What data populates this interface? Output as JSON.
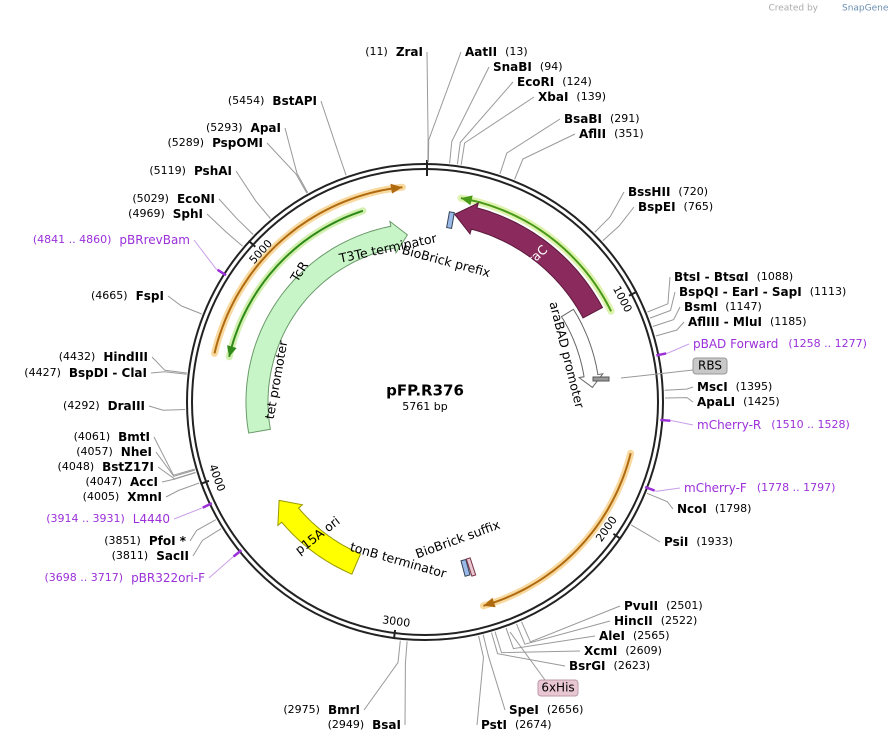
{
  "header": {
    "created_by": "Created by",
    "brand": "SnapGene"
  },
  "map": {
    "name": "pFP.R376",
    "length": "5761 bp",
    "ticks": [
      "1000",
      "2000",
      "3000",
      "4000",
      "5000"
    ]
  },
  "enzymes_left": [
    {
      "site": "(11)",
      "name": "ZraI"
    },
    {
      "site": "(5454)",
      "name": "BstAPI"
    },
    {
      "site": "(5293)",
      "name": "ApaI"
    },
    {
      "site": "(5289)",
      "name": "PspOMI"
    },
    {
      "site": "(5119)",
      "name": "PshAI"
    },
    {
      "site": "(5029)",
      "name": "EcoNI"
    },
    {
      "site": "(4969)",
      "name": "SphI"
    },
    {
      "site": "(4665)",
      "name": "FspI"
    },
    {
      "site": "(4432)",
      "name": "HindIII"
    },
    {
      "site": "(4427)",
      "name": "BspDI - ClaI"
    },
    {
      "site": "(4292)",
      "name": "DraIII"
    },
    {
      "site": "(4061)",
      "name": "BmtI"
    },
    {
      "site": "(4057)",
      "name": "NheI"
    },
    {
      "site": "(4048)",
      "name": "BstZ17I"
    },
    {
      "site": "(4047)",
      "name": "AccI"
    },
    {
      "site": "(4005)",
      "name": "XmnI"
    },
    {
      "site": "(3851)",
      "name": "PfoI *"
    },
    {
      "site": "(3811)",
      "name": "SacII"
    },
    {
      "site": "(2975)",
      "name": "BmrI"
    },
    {
      "site": "(2949)",
      "name": "BsaI"
    }
  ],
  "enzymes_right": [
    {
      "name": "AatII",
      "site": "(13)"
    },
    {
      "name": "SnaBI",
      "site": "(94)"
    },
    {
      "name": "EcoRI",
      "site": "(124)"
    },
    {
      "name": "XbaI",
      "site": "(139)"
    },
    {
      "name": "BsaBI",
      "site": "(291)"
    },
    {
      "name": "AflII",
      "site": "(351)"
    },
    {
      "name": "BssHII",
      "site": "(720)"
    },
    {
      "name": "BspEI",
      "site": "(765)"
    },
    {
      "name": "BtsI - BtsαI",
      "site": "(1088)"
    },
    {
      "name": "BspQI - EarI - SapI",
      "site": "(1113)"
    },
    {
      "name": "BsmI",
      "site": "(1147)"
    },
    {
      "name": "AflIII - MluI",
      "site": "(1185)"
    },
    {
      "name": "MscI",
      "site": "(1395)"
    },
    {
      "name": "ApaLI",
      "site": "(1425)"
    },
    {
      "name": "NcoI",
      "site": "(1798)"
    },
    {
      "name": "PsiI",
      "site": "(1933)"
    },
    {
      "name": "PvuII",
      "site": "(2501)"
    },
    {
      "name": "HincII",
      "site": "(2522)"
    },
    {
      "name": "AleI",
      "site": "(2565)"
    },
    {
      "name": "XcmI",
      "site": "(2609)"
    },
    {
      "name": "BsrGI",
      "site": "(2623)"
    },
    {
      "name": "SpeI",
      "site": "(2656)"
    },
    {
      "name": "PstI",
      "site": "(2674)"
    }
  ],
  "primers_left": [
    {
      "range": "(4841 .. 4860)",
      "name": "pBRrevBam"
    },
    {
      "range": "(3914 .. 3931)",
      "name": "L4440"
    },
    {
      "range": "(3698 .. 3717)",
      "name": "pBR322ori-F"
    }
  ],
  "primers_right": [
    {
      "name": "pBAD Forward",
      "range": "(1258 .. 1277)"
    },
    {
      "name": "mCherry-R",
      "range": "(1510 .. 1528)"
    },
    {
      "name": "mCherry-F",
      "range": "(1778 .. 1797)"
    }
  ],
  "features": {
    "araC": "araC",
    "TcR": "TcR",
    "p15A": "p15A ori",
    "araBAD": "araBAD promoter",
    "tet": "tet promoter",
    "t3te": "T3Te terminator",
    "prefix": "BioBrick prefix",
    "suffix": "BioBrick suffix",
    "tonB": "tonB terminator",
    "rbs": "RBS",
    "his": "6xHis"
  }
}
